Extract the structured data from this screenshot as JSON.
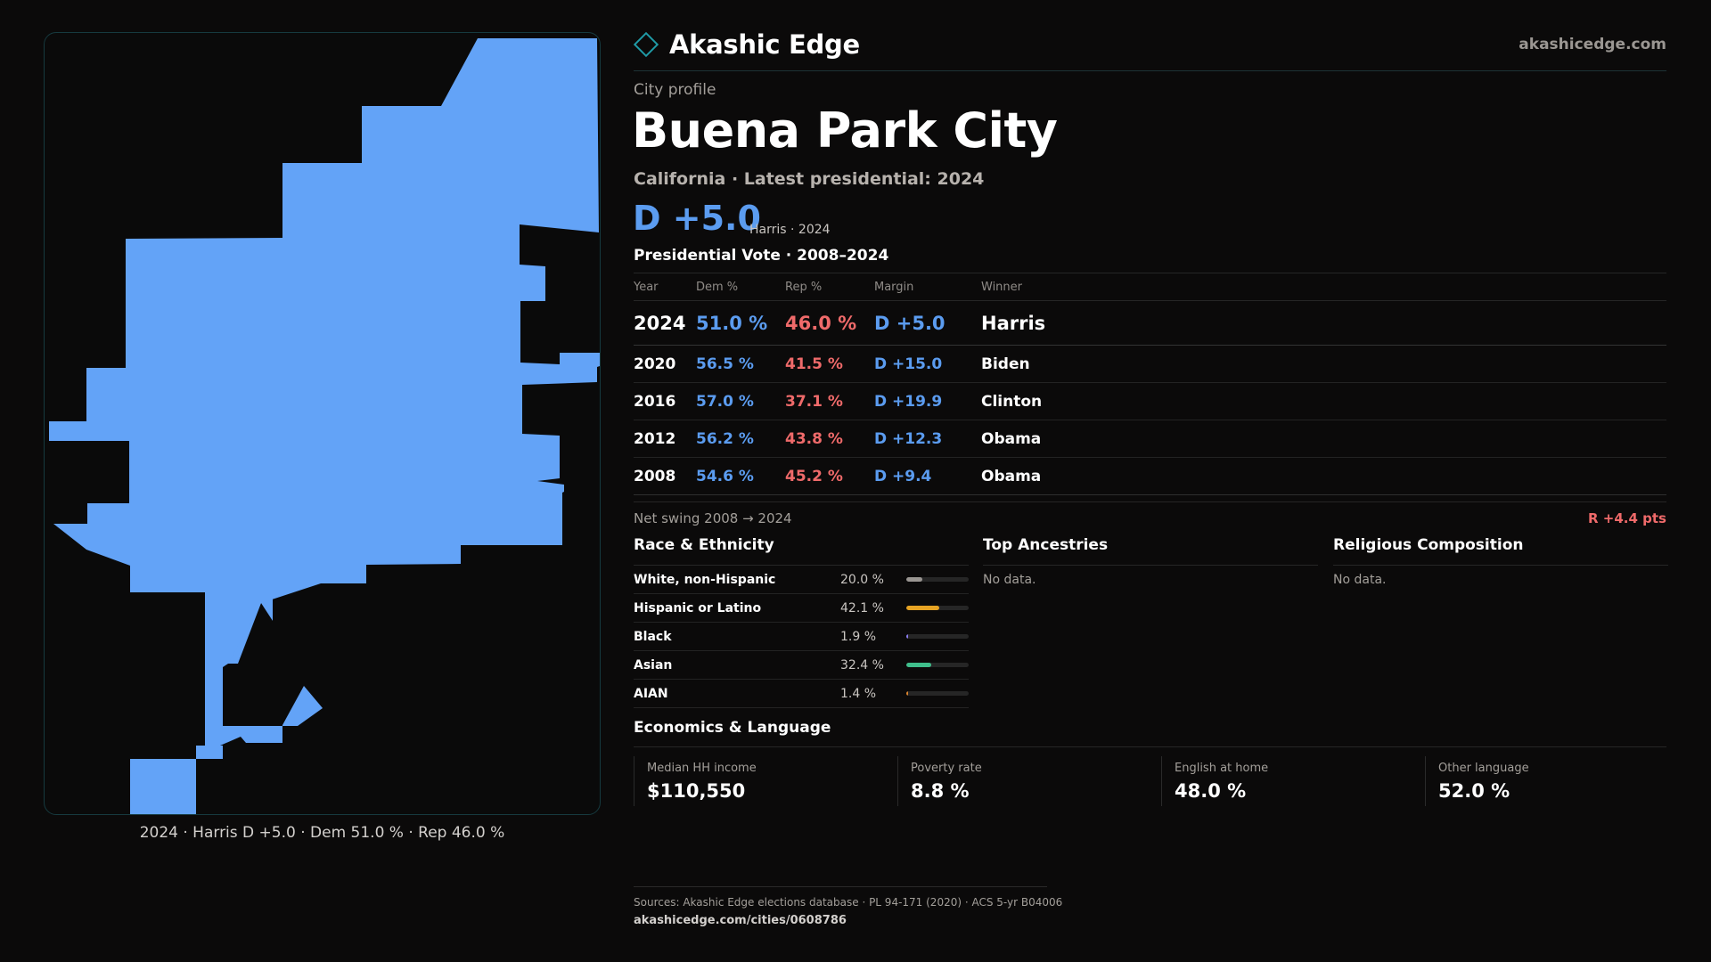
{
  "brand": {
    "name": "Akashic Edge",
    "site": "akashicedge.com",
    "icon": "diamond-outline-icon"
  },
  "page": {
    "eyebrow": "City profile",
    "title": "Buena Park City",
    "subtitle": "California · Latest presidential: 2024"
  },
  "headline": {
    "margin": "D +5.0",
    "note": "Harris · 2024"
  },
  "colors": {
    "dem": "#5b9cf0",
    "rep": "#ef6a6a",
    "map_fill": "#63a3f7",
    "accent": "#1f9aa6"
  },
  "map": {
    "caption": "2024 · Harris D +5.0 · Dem 51.0 % · Rep 46.0 %"
  },
  "presidential": {
    "title": "Presidential Vote · 2008–2024",
    "headers": {
      "year": "Year",
      "dem": "Dem %",
      "rep": "Rep %",
      "margin": "Margin",
      "winner": "Winner"
    },
    "rows": [
      {
        "year": "2024",
        "dem": "51.0 %",
        "rep": "46.0 %",
        "margin": "D +5.0",
        "winner": "Harris"
      },
      {
        "year": "2020",
        "dem": "56.5 %",
        "rep": "41.5 %",
        "margin": "D +15.0",
        "winner": "Biden"
      },
      {
        "year": "2016",
        "dem": "57.0 %",
        "rep": "37.1 %",
        "margin": "D +19.9",
        "winner": "Clinton"
      },
      {
        "year": "2012",
        "dem": "56.2 %",
        "rep": "43.8 %",
        "margin": "D +12.3",
        "winner": "Obama"
      },
      {
        "year": "2008",
        "dem": "54.6 %",
        "rep": "45.2 %",
        "margin": "D +9.4",
        "winner": "Obama"
      }
    ],
    "swing_label": "Net swing 2008 → 2024",
    "swing_value": "R +4.4 pts"
  },
  "race": {
    "title": "Race & Ethnicity",
    "rows": [
      {
        "name": "White, non-Hispanic",
        "pct": "20.0 %",
        "value": 0.2,
        "color": "#9a9692"
      },
      {
        "name": "Hispanic or Latino",
        "pct": "42.1 %",
        "value": 0.421,
        "color": "#e6a323"
      },
      {
        "name": "Black",
        "pct": "1.9 %",
        "value": 0.019,
        "color": "#8b7cf0"
      },
      {
        "name": "Asian",
        "pct": "32.4 %",
        "value": 0.324,
        "color": "#3fbf8c"
      },
      {
        "name": "AIAN",
        "pct": "1.4 %",
        "value": 0.014,
        "color": "#d9832e"
      }
    ]
  },
  "ancestries": {
    "title": "Top Ancestries",
    "empty": "No data."
  },
  "religion": {
    "title": "Religious Composition",
    "empty": "No data."
  },
  "economics": {
    "title": "Economics & Language",
    "cards": [
      {
        "label": "Median HH income",
        "value": "$110,550"
      },
      {
        "label": "Poverty rate",
        "value": "8.8 %"
      },
      {
        "label": "English at home",
        "value": "48.0 %"
      },
      {
        "label": "Other language",
        "value": "52.0 %"
      }
    ]
  },
  "footer": {
    "sources": "Sources: Akashic Edge elections database · PL 94-171 (2020) · ACS 5-yr B04006",
    "url": "akashicedge.com/cities/0608786"
  }
}
